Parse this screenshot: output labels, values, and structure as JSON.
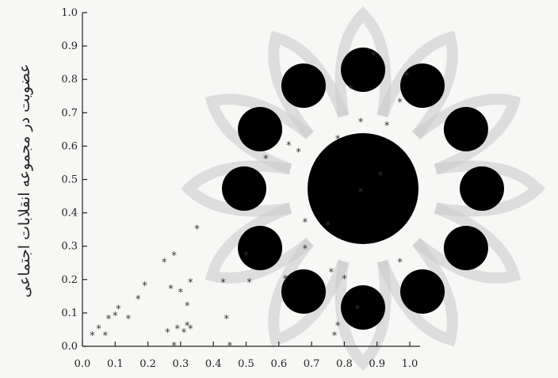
{
  "chart_data": {
    "type": "scatter",
    "title": "",
    "xlabel": "",
    "ylabel": "عضویت در مجموعه انقلابات اجتماعی",
    "xlim": [
      0.0,
      1.0
    ],
    "ylim": [
      0.0,
      1.0
    ],
    "xticks": [
      "0.0",
      "0.1",
      "0.2",
      "0.3",
      "0.4",
      "0.5",
      "0.6",
      "0.7",
      "0.8",
      "0.9",
      "1.0"
    ],
    "yticks": [
      "0.0",
      "0.1",
      "0.2",
      "0.3",
      "0.4",
      "0.5",
      "0.6",
      "0.7",
      "0.8",
      "0.9",
      "1.0"
    ],
    "grid": false,
    "marker": "asterisk",
    "color": "#333333",
    "points": [
      [
        0.03,
        0.04
      ],
      [
        0.05,
        0.06
      ],
      [
        0.07,
        0.04
      ],
      [
        0.08,
        0.09
      ],
      [
        0.1,
        0.1
      ],
      [
        0.11,
        0.12
      ],
      [
        0.14,
        0.09
      ],
      [
        0.17,
        0.15
      ],
      [
        0.19,
        0.19
      ],
      [
        0.25,
        0.26
      ],
      [
        0.26,
        0.05
      ],
      [
        0.27,
        0.18
      ],
      [
        0.28,
        0.28
      ],
      [
        0.29,
        0.06
      ],
      [
        0.28,
        0.01
      ],
      [
        0.3,
        0.17
      ],
      [
        0.31,
        0.05
      ],
      [
        0.32,
        0.07
      ],
      [
        0.32,
        0.13
      ],
      [
        0.33,
        0.2
      ],
      [
        0.33,
        0.06
      ],
      [
        0.35,
        0.36
      ],
      [
        0.43,
        0.2
      ],
      [
        0.44,
        0.09
      ],
      [
        0.45,
        0.01
      ],
      [
        0.5,
        0.28
      ],
      [
        0.51,
        0.2
      ],
      [
        0.56,
        0.57
      ],
      [
        0.62,
        0.21
      ],
      [
        0.63,
        0.61
      ],
      [
        0.66,
        0.59
      ],
      [
        0.68,
        0.38
      ],
      [
        0.68,
        0.3
      ],
      [
        0.75,
        0.37
      ],
      [
        0.76,
        0.23
      ],
      [
        0.77,
        0.04
      ],
      [
        0.78,
        0.07
      ],
      [
        0.78,
        0.63
      ],
      [
        0.8,
        0.21
      ],
      [
        0.82,
        0.78
      ],
      [
        0.84,
        0.12
      ],
      [
        0.85,
        0.47
      ],
      [
        0.85,
        0.68
      ],
      [
        0.89,
        0.88
      ],
      [
        0.91,
        0.52
      ],
      [
        0.93,
        0.67
      ],
      [
        0.97,
        0.74
      ],
      [
        0.97,
        0.26
      ],
      [
        0.99,
        0.82
      ]
    ]
  }
}
